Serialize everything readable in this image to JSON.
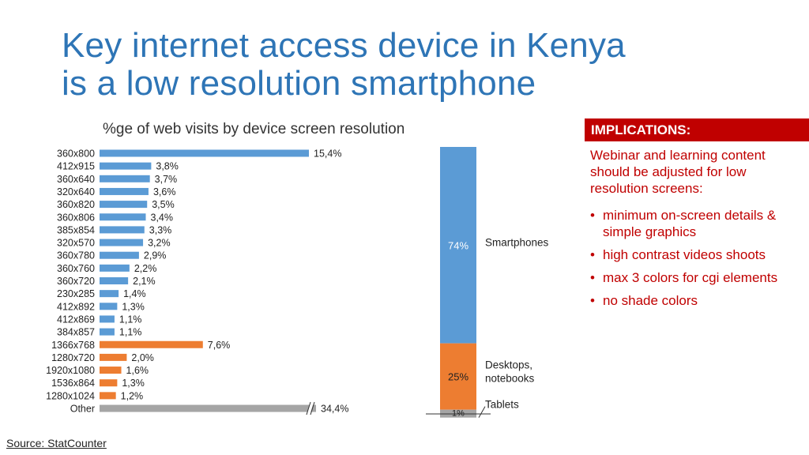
{
  "title": {
    "line1": "Key internet access device in Kenya",
    "line2": "is a low resolution smartphone"
  },
  "chart_data": [
    {
      "type": "bar",
      "orientation": "horizontal",
      "title": "%ge of web visits by device screen resolution",
      "categories": [
        "360x800",
        "412x915",
        "360x640",
        "320x640",
        "360x820",
        "360x806",
        "385x854",
        "320x570",
        "360x780",
        "360x760",
        "360x720",
        "230x285",
        "412x892",
        "412x869",
        "384x857",
        "1366x768",
        "1280x720",
        "1920x1080",
        "1536x864",
        "1280x1024",
        "Other"
      ],
      "values": [
        15.4,
        3.8,
        3.7,
        3.6,
        3.5,
        3.4,
        3.3,
        3.2,
        2.9,
        2.2,
        2.1,
        1.4,
        1.3,
        1.1,
        1.1,
        7.6,
        2.0,
        1.6,
        1.3,
        1.2,
        34.4
      ],
      "value_labels": [
        "15,4%",
        "3,8%",
        "3,7%",
        "3,6%",
        "3,5%",
        "3,4%",
        "3,3%",
        "3,2%",
        "2,9%",
        "2,2%",
        "2,1%",
        "1,4%",
        "1,3%",
        "1,1%",
        "1,1%",
        "7,6%",
        "2,0%",
        "1,6%",
        "1,3%",
        "1,2%",
        "34,4%"
      ],
      "groups": [
        "smartphone",
        "smartphone",
        "smartphone",
        "smartphone",
        "smartphone",
        "smartphone",
        "smartphone",
        "smartphone",
        "smartphone",
        "smartphone",
        "smartphone",
        "smartphone",
        "smartphone",
        "smartphone",
        "smartphone",
        "desktop",
        "desktop",
        "desktop",
        "desktop",
        "desktop",
        "other"
      ],
      "colors": {
        "smartphone": "#5b9bd5",
        "desktop": "#ed7d31",
        "other": "#a5a5a5"
      },
      "axis_break_on": "Other",
      "xlabel": "",
      "ylabel": ""
    },
    {
      "type": "bar",
      "stacked": true,
      "orientation": "vertical",
      "series": [
        {
          "name": "Smartphones",
          "value": 74,
          "label": "74%",
          "color": "#5b9bd5"
        },
        {
          "name": "Desktops, notebooks",
          "value": 25,
          "label": "25%",
          "color": "#ed7d31"
        },
        {
          "name": "Tablets",
          "value": 1,
          "label": "1%",
          "color": "#a5a5a5"
        }
      ]
    }
  ],
  "implications": {
    "header": "IMPLICATIONS:",
    "intro": "Webinar and learning content should be adjusted for low resolution screens:",
    "items": [
      "minimum on-screen details & simple graphics",
      "high contrast videos shoots",
      "max 3 colors for cgi elements",
      "no shade colors"
    ]
  },
  "source": "Source: StatCounter"
}
